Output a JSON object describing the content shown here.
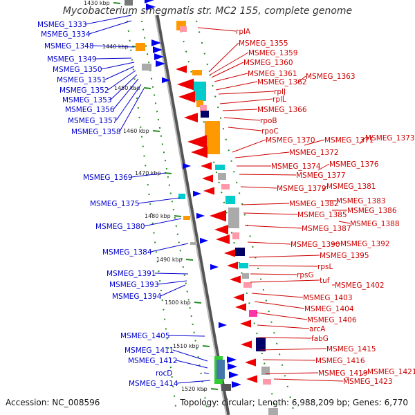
{
  "title": "Mycobacterium smegmatis str. MC2 155, complete genome",
  "footer": {
    "accession": "Accession: NC_008596",
    "info": "Topology: circular; Length: 6,988,209 bp; Genes: 6,770"
  },
  "ticks": [
    "1430 kbp",
    "1440 kbp",
    "1450 kbp",
    "1460 kbp",
    "1470 kbp",
    "1480 kbp",
    "1490 kbp",
    "1500 kbp",
    "1510 kbp",
    "1520 kbp"
  ],
  "left_labels": [
    "MSMEG_1333",
    "MSMEG_1334",
    "MSMEG_1348",
    "MSMEG_1349",
    "MSMEG_1350",
    "MSMEG_1351",
    "MSMEG_1352",
    "MSMEG_1353",
    "MSMEG_1356",
    "MSMEG_1357",
    "MSMEG_1358",
    "MSMEG_1369",
    "MSMEG_1375",
    "MSMEG_1380",
    "MSMEG_1384",
    "MSMEG_1391",
    "MSMEG_1393",
    "MSMEG_1394",
    "MSMEG_1405",
    "MSMEG_1411",
    "MSMEG_1412",
    "rocD",
    "MSMEG_1414"
  ],
  "right_labels": [
    "rplA",
    "MSMEG_1355",
    "MSMEG_1359",
    "MSMEG_1360",
    "MSMEG_1361",
    "MSMEG_1363",
    "MSMEG_1362",
    "rplJ",
    "rplL",
    "MSMEG_1366",
    "rpoB",
    "rpoC",
    "MSMEG_1370",
    "MSMEG_1371",
    "MSMEG_1373",
    "MSMEG_1372",
    "MSMEG_1374",
    "MSMEG_1376",
    "MSMEG_1377",
    "MSMEG_1379",
    "MSMEG_1381",
    "MSMEG_1383",
    "MSMEG_1382",
    "MSMEG_1386",
    "MSMEG_1385",
    "MSMEG_1388",
    "MSMEG_1387",
    "MSMEG_1390",
    "MSMEG_1392",
    "MSMEG_1395",
    "rpsL",
    "rpsG",
    "tuf",
    "MSMEG_1402",
    "MSMEG_1403",
    "MSMEG_1404",
    "MSMEG_1406",
    "arcA",
    "fabG",
    "MSMEG_1415",
    "MSMEG_1416",
    "MSMEG_1419",
    "MSMEG_1421",
    "MSMEG_1423"
  ],
  "colors": {
    "backbone": "#888888",
    "forward_label": "#0000cc",
    "reverse_label": "#cc0000",
    "forward_gene": "#0000ee",
    "reverse_gene": "#ee0000",
    "tick": "#228b22",
    "cds_orange": "#ff9900",
    "cds_cyan": "#00cccc",
    "cds_pink": "#ff99aa",
    "cds_grey": "#aaaaaa",
    "cds_navy": "#000066",
    "cds_magenta": "#ff33aa",
    "cds_green": "#33cc33"
  }
}
